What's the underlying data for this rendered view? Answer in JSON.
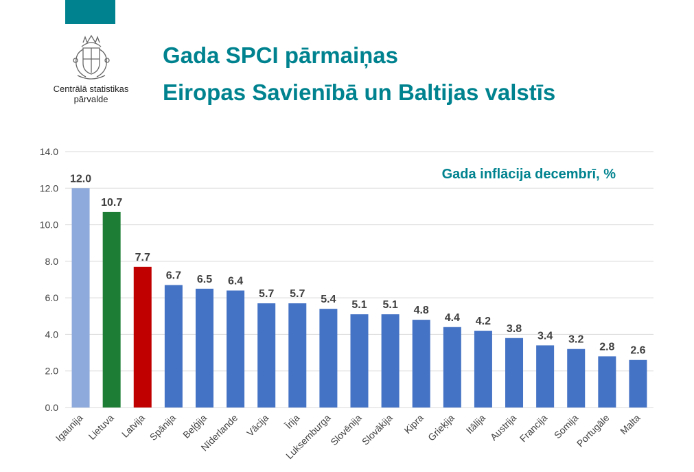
{
  "header": {
    "title_line1": "Gada SPCI pārmaiņas",
    "title_line2": "Eiropas Savienībā un Baltijas valstīs",
    "org_line1": "Centrālā statistikas",
    "org_line2": "pārvalde"
  },
  "colors": {
    "accent": "#00838F",
    "default_bar": "#4472C4",
    "estonia_bar": "#8EA9DB",
    "lithuania_bar": "#1E7D34",
    "latvia_bar": "#C00000",
    "grid": "#D9D9D9",
    "text": "#404040"
  },
  "icons": {
    "logo": "coat-of-arms-icon"
  },
  "chart_data": {
    "type": "bar",
    "title": "Gada inflācija decembrī, %",
    "xlabel": "",
    "ylabel": "",
    "ylim": [
      0,
      14
    ],
    "yticks": [
      "0.0",
      "2.0",
      "4.0",
      "6.0",
      "8.0",
      "10.0",
      "12.0",
      "14.0"
    ],
    "grid": true,
    "categories": [
      "Igaunija",
      "Lietuva",
      "Latvija",
      "Spānija",
      "Beļģija",
      "Nīderlande",
      "Vācija",
      "Īrija",
      "Luksemburga",
      "Slovēnija",
      "Slovākija",
      "Kipra",
      "Grieķija",
      "Itālija",
      "Austrija",
      "Francija",
      "Somija",
      "Portugāle",
      "Malta"
    ],
    "values": [
      12.0,
      10.7,
      7.7,
      6.7,
      6.5,
      6.4,
      5.7,
      5.7,
      5.4,
      5.1,
      5.1,
      4.8,
      4.4,
      4.2,
      3.8,
      3.4,
      3.2,
      2.8,
      2.6
    ],
    "value_labels": [
      "12.0",
      "10.7",
      "7.7",
      "6.7",
      "6.5",
      "6.4",
      "5.7",
      "5.7",
      "5.4",
      "5.1",
      "5.1",
      "4.8",
      "4.4",
      "4.2",
      "3.8",
      "3.4",
      "3.2",
      "2.8",
      "2.6"
    ],
    "bar_colors": [
      "#8EA9DB",
      "#1E7D34",
      "#C00000",
      "#4472C4",
      "#4472C4",
      "#4472C4",
      "#4472C4",
      "#4472C4",
      "#4472C4",
      "#4472C4",
      "#4472C4",
      "#4472C4",
      "#4472C4",
      "#4472C4",
      "#4472C4",
      "#4472C4",
      "#4472C4",
      "#4472C4",
      "#4472C4"
    ]
  }
}
